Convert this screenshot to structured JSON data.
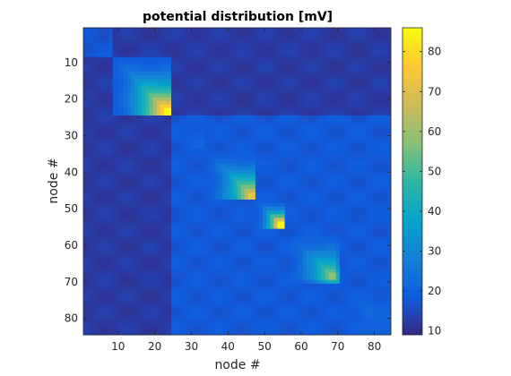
{
  "chart_data": {
    "type": "heatmap",
    "title": "potential distribution [mV]",
    "xlabel": "node #",
    "ylabel": "node #",
    "n_nodes": 84,
    "xlim": [
      0.5,
      84.5
    ],
    "ylim": [
      0.5,
      84.5
    ],
    "y_reversed": true,
    "x_ticks": [
      10,
      20,
      30,
      40,
      50,
      60,
      70,
      80
    ],
    "y_ticks": [
      10,
      20,
      30,
      40,
      50,
      60,
      70,
      80
    ],
    "colorbar": {
      "colormap": "parula",
      "clim": [
        9,
        86
      ],
      "ticks": [
        10,
        20,
        30,
        40,
        50,
        60,
        70,
        80
      ]
    },
    "block_boundaries": [
      8,
      24,
      47,
      55,
      70,
      84
    ],
    "background_mV": {
      "within_block_1_cross": 12,
      "default": 18
    },
    "blocks": [
      {
        "nodes": [
          8,
          24
        ],
        "peak_node": 23,
        "max_mV": 86
      },
      {
        "nodes": [
          25,
          33
        ],
        "peak_node": 33,
        "max_mV": 22
      },
      {
        "nodes": [
          34,
          47
        ],
        "peak_node": 46,
        "max_mV": 72
      },
      {
        "nodes": [
          48,
          55
        ],
        "peak_node": 54,
        "max_mV": 85
      },
      {
        "nodes": [
          56,
          70
        ],
        "peak_node": 68,
        "max_mV": 58
      },
      {
        "nodes": [
          71,
          84
        ],
        "peak_node": 78,
        "max_mV": 22
      }
    ]
  }
}
